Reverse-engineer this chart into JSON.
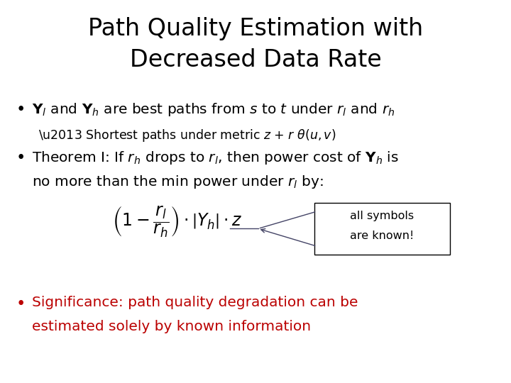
{
  "title_line1": "Path Quality Estimation with",
  "title_line2": "Decreased Data Rate",
  "title_fontsize": 24,
  "title_color": "#000000",
  "background_color": "#ffffff",
  "subbullet": "Shortest paths under metric z + r θ(u,v)",
  "annotation_text1": "all symbols",
  "annotation_text2": "are known!",
  "significance_line1": "Significance: path quality degradation can be",
  "significance_line2": "estimated solely by known information",
  "significance_color": "#bb0000"
}
